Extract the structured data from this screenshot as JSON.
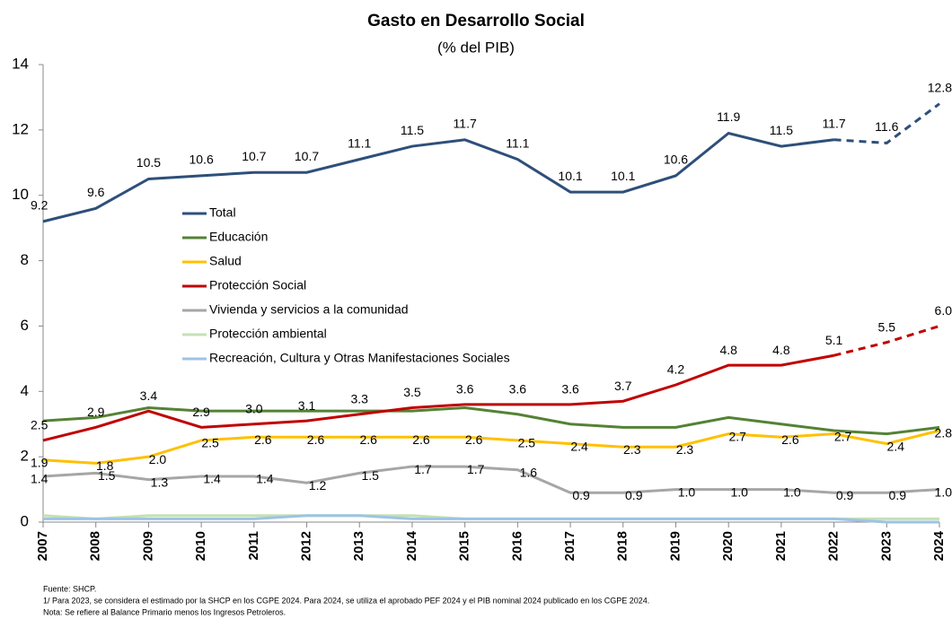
{
  "chart_data": {
    "type": "line",
    "title": "Gasto en Desarrollo Social",
    "subtitle": "(% del PIB)",
    "categories": [
      "2007",
      "2008",
      "2009",
      "2010",
      "2011",
      "2012",
      "2013",
      "2014",
      "2015",
      "2016",
      "2017",
      "2018",
      "2019",
      "2020",
      "2021",
      "2022",
      "2023",
      "2024"
    ],
    "ylim": [
      0,
      14
    ],
    "yticks": [
      0,
      2,
      4,
      6,
      8,
      10,
      12,
      14
    ],
    "dashed_from": "2022",
    "series": [
      {
        "name": "Total",
        "color": "#2e4f7a",
        "dashed": true,
        "values": [
          9.2,
          9.6,
          10.5,
          10.6,
          10.7,
          10.7,
          11.1,
          11.5,
          11.7,
          11.1,
          10.1,
          10.1,
          10.6,
          11.9,
          11.5,
          11.7,
          11.6,
          12.8
        ],
        "value_labels": [
          "9.2",
          "9.6",
          "10.5",
          "10.6",
          "10.7",
          "10.7",
          "11.1",
          "11.5",
          "11.7",
          "11.1",
          "10.1",
          "10.1",
          "10.6",
          "11.9",
          "11.5",
          "11.7",
          "11.6",
          "12.8"
        ]
      },
      {
        "name": "Educación",
        "color": "#548235",
        "values": [
          3.1,
          3.2,
          3.5,
          3.4,
          3.4,
          3.4,
          3.4,
          3.4,
          3.5,
          3.3,
          3.0,
          2.9,
          2.9,
          3.2,
          3.0,
          2.8,
          2.7,
          2.9
        ]
      },
      {
        "name": "Salud",
        "color": "#ffc000",
        "values": [
          1.9,
          1.8,
          2.0,
          2.5,
          2.6,
          2.6,
          2.6,
          2.6,
          2.6,
          2.5,
          2.4,
          2.3,
          2.3,
          2.7,
          2.6,
          2.7,
          2.4,
          2.8
        ],
        "value_labels": [
          "1.9",
          "1.8",
          "2.0",
          "2.5",
          "2.6",
          "2.6",
          "2.6",
          "2.6",
          "2.6",
          "2.5",
          "2.4",
          "2.3",
          "2.3",
          "2.7",
          "2.6",
          "2.7",
          "2.4",
          "2.8"
        ]
      },
      {
        "name": "Protección Social",
        "color": "#c00000",
        "dashed": true,
        "values": [
          2.5,
          2.9,
          3.4,
          2.9,
          3.0,
          3.1,
          3.3,
          3.5,
          3.6,
          3.6,
          3.6,
          3.7,
          4.2,
          4.8,
          4.8,
          5.1,
          5.5,
          6.0
        ],
        "value_labels": [
          "2.5",
          "2.9",
          "3.4",
          "2.9",
          "3.0",
          "3.1",
          "3.3",
          "3.5",
          "3.6",
          "3.6",
          "3.6",
          "3.7",
          "4.2",
          "4.8",
          "4.8",
          "5.1",
          "5.5",
          "6.0"
        ]
      },
      {
        "name": "Vivienda y servicios a la comunidad",
        "color": "#a6a6a6",
        "values": [
          1.4,
          1.5,
          1.3,
          1.4,
          1.4,
          1.2,
          1.5,
          1.7,
          1.7,
          1.6,
          0.9,
          0.9,
          1.0,
          1.0,
          1.0,
          0.9,
          0.9,
          1.0
        ],
        "value_labels": [
          "1.4",
          "1.5",
          "1.3",
          "1.4",
          "1.4",
          "1.2",
          "1.5",
          "1.7",
          "1.7",
          "1.6",
          "0.9",
          "0.9",
          "1.0",
          "1.0",
          "1.0",
          "0.9",
          "0.9",
          "1.0"
        ]
      },
      {
        "name": "Protección ambiental",
        "color": "#c5e0b4",
        "values": [
          0.2,
          0.1,
          0.2,
          0.2,
          0.2,
          0.2,
          0.2,
          0.2,
          0.1,
          0.1,
          0.1,
          0.1,
          0.1,
          0.1,
          0.1,
          0.1,
          0.1,
          0.1
        ]
      },
      {
        "name": "Recreación, Cultura y Otras Manifestaciones Sociales",
        "color": "#9dc3e6",
        "values": [
          0.1,
          0.1,
          0.1,
          0.1,
          0.1,
          0.2,
          0.2,
          0.1,
          0.1,
          0.1,
          0.1,
          0.1,
          0.1,
          0.1,
          0.1,
          0.1,
          0.0,
          0.0
        ]
      }
    ],
    "notes": [
      "Fuente: SHCP.",
      "1/ Para 2023, se considera el estimado por la SHCP en los CGPE 2024. Para 2024, se utiliza el aprobado PEF 2024 y el PIB nominal 2024 publicado en los CGPE 2024.",
      "Nota: Se refiere al Balance Primario menos los Ingresos Petroleros."
    ]
  }
}
